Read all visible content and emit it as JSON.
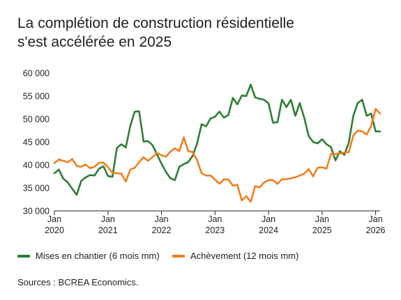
{
  "title_line1": "La complétion de construction résidentielle",
  "title_line2": "s'est accélérée en 2025",
  "source": "Sources : BCREA Economics.",
  "colors": {
    "starts": "#2e7d32",
    "completions": "#f07e1d",
    "axis": "#222222"
  },
  "chart_data": {
    "type": "line",
    "title": "La complétion de construction résidentielle s'est accélérée en 2025",
    "xlabel": "",
    "ylabel": "",
    "ylim": [
      30000,
      60000
    ],
    "yticks": [
      {
        "value": 30000,
        "label": "30 000"
      },
      {
        "value": 35000,
        "label": "35 000"
      },
      {
        "value": 40000,
        "label": "40 000"
      },
      {
        "value": 45000,
        "label": "45 000"
      },
      {
        "value": 50000,
        "label": "50 000"
      },
      {
        "value": 55000,
        "label": "55 000"
      },
      {
        "value": 60000,
        "label": "60 000"
      }
    ],
    "xlim": [
      "2020-01",
      "2026-02"
    ],
    "xticks": [
      {
        "value": "2020-01",
        "label_month": "Jan",
        "label_year": "2020"
      },
      {
        "value": "2021-01",
        "label_month": "Jan",
        "label_year": "2021"
      },
      {
        "value": "2022-01",
        "label_month": "Jan",
        "label_year": "2022"
      },
      {
        "value": "2023-01",
        "label_month": "Jan",
        "label_year": "2023"
      },
      {
        "value": "2024-01",
        "label_month": "Jan",
        "label_year": "2024"
      },
      {
        "value": "2025-01",
        "label_month": "Jan",
        "label_year": "2025"
      },
      {
        "value": "2026-01",
        "label_month": "Jan",
        "label_year": "2026"
      }
    ],
    "x": [
      "2020-01",
      "2020-02",
      "2020-03",
      "2020-04",
      "2020-05",
      "2020-06",
      "2020-07",
      "2020-08",
      "2020-09",
      "2020-10",
      "2020-11",
      "2020-12",
      "2021-01",
      "2021-02",
      "2021-03",
      "2021-04",
      "2021-05",
      "2021-06",
      "2021-07",
      "2021-08",
      "2021-09",
      "2021-10",
      "2021-11",
      "2021-12",
      "2022-01",
      "2022-02",
      "2022-03",
      "2022-04",
      "2022-05",
      "2022-06",
      "2022-07",
      "2022-08",
      "2022-09",
      "2022-10",
      "2022-11",
      "2022-12",
      "2023-01",
      "2023-02",
      "2023-03",
      "2023-04",
      "2023-05",
      "2023-06",
      "2023-07",
      "2023-08",
      "2023-09",
      "2023-10",
      "2023-11",
      "2023-12",
      "2024-01",
      "2024-02",
      "2024-03",
      "2024-04",
      "2024-05",
      "2024-06",
      "2024-07",
      "2024-08",
      "2024-09",
      "2024-10",
      "2024-11",
      "2024-12",
      "2025-01",
      "2025-02",
      "2025-03",
      "2025-04",
      "2025-05",
      "2025-06",
      "2025-07",
      "2025-08",
      "2025-09",
      "2025-10",
      "2025-11",
      "2025-12",
      "2026-01",
      "2026-02"
    ],
    "series": [
      {
        "name": "Mises en chantier (6 mois mm)",
        "color": "#2e7d32",
        "values": [
          38200,
          39000,
          37000,
          36200,
          34800,
          33500,
          36500,
          37300,
          37800,
          37700,
          39200,
          39700,
          37600,
          37400,
          43700,
          44500,
          43800,
          48500,
          51600,
          51700,
          45100,
          45200,
          44300,
          42300,
          40300,
          38500,
          37100,
          36700,
          39600,
          40200,
          40600,
          42000,
          44700,
          48900,
          48400,
          50100,
          50500,
          51600,
          50300,
          50900,
          54600,
          53200,
          55100,
          55000,
          57500,
          54700,
          54400,
          54200,
          53400,
          49200,
          49300,
          54200,
          52600,
          54200,
          50700,
          53500,
          50300,
          46300,
          45000,
          44700,
          45600,
          44500,
          43900,
          41000,
          43000,
          42200,
          44900,
          50700,
          53500,
          54200,
          50700,
          51200,
          47300,
          47300
        ]
      },
      {
        "name": "Achèvement (12 mois mm)",
        "color": "#f07e1d",
        "values": [
          40400,
          41200,
          40900,
          40600,
          41300,
          39800,
          39600,
          40100,
          39300,
          39600,
          40500,
          40500,
          39500,
          38300,
          38200,
          38100,
          36400,
          39000,
          39400,
          40600,
          41700,
          40900,
          41700,
          42600,
          42100,
          41800,
          42900,
          43600,
          43000,
          46000,
          43000,
          42800,
          41000,
          38200,
          37700,
          37700,
          36800,
          35900,
          36900,
          36800,
          35500,
          35700,
          32300,
          33200,
          32000,
          35400,
          35100,
          36200,
          36700,
          36700,
          35900,
          36900,
          36900,
          37100,
          37300,
          37700,
          38100,
          39100,
          37500,
          39400,
          39500,
          39200,
          42400,
          42400,
          42500,
          42700,
          42800,
          46400,
          47500,
          47300,
          46600,
          48500,
          52200,
          51200
        ]
      }
    ],
    "grid": false,
    "legend": "bottom-left"
  }
}
